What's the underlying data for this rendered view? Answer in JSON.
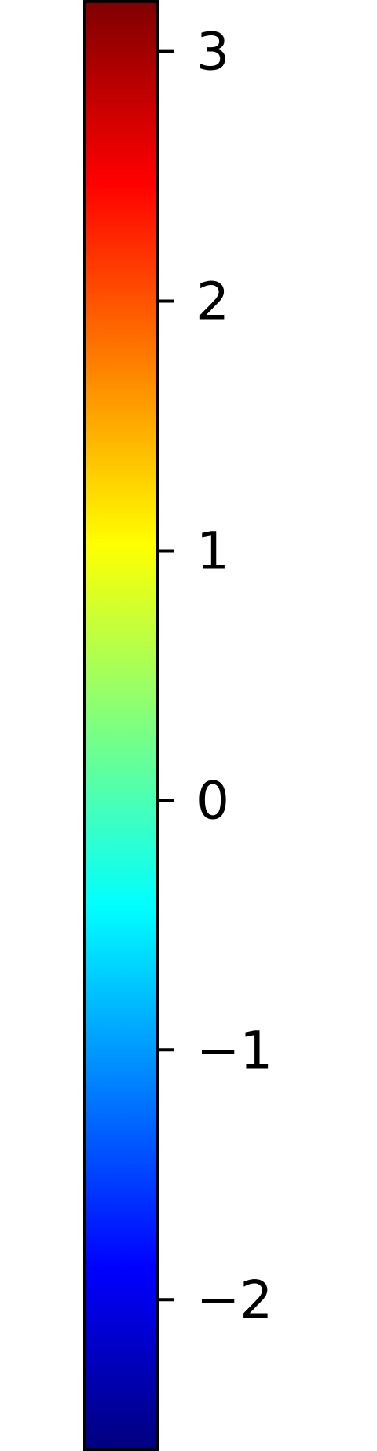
{
  "chart_data": {
    "type": "colorbar",
    "colormap": "jet",
    "orientation": "vertical",
    "vmin": -2.6,
    "vmax": 3.2,
    "ticks": [
      3,
      2,
      1,
      0,
      -1,
      -2
    ],
    "tick_labels": [
      "3",
      "2",
      "1",
      "0",
      "−1",
      "−2"
    ],
    "title": "",
    "ylabel": "",
    "colors": {
      "stops": [
        "#00007f",
        "#0000ff",
        "#007fff",
        "#00ffff",
        "#7fff7f",
        "#ffff00",
        "#ff7f00",
        "#ff0000",
        "#7f0000"
      ],
      "outline": "#000000",
      "background": "#ffffff"
    }
  }
}
